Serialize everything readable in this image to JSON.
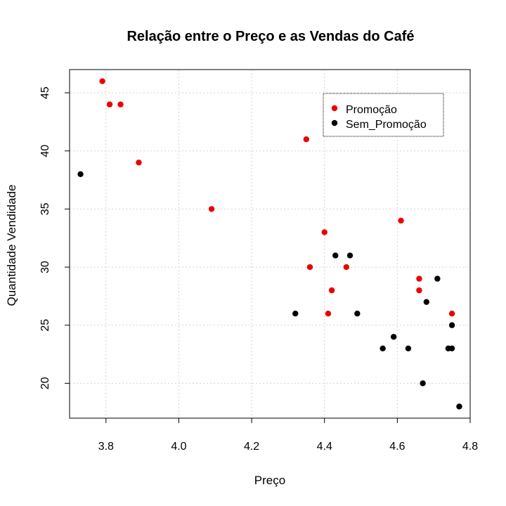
{
  "chart_data": {
    "type": "scatter",
    "title": "Relação entre o Preço e as Vendas do Café",
    "xlabel": "Preço",
    "ylabel": "Quantidade Vendidade",
    "xlim": [
      3.7,
      4.8
    ],
    "ylim": [
      17,
      47
    ],
    "xticks": [
      3.8,
      4.0,
      4.2,
      4.4,
      4.6,
      4.8
    ],
    "xtick_labels": [
      "3.8",
      "4.0",
      "4.2",
      "4.4",
      "4.6",
      "4.8"
    ],
    "yticks": [
      20,
      25,
      30,
      35,
      40,
      45
    ],
    "ytick_labels": [
      "20",
      "25",
      "30",
      "35",
      "40",
      "45"
    ],
    "grid": true,
    "legend_position": "top-right",
    "series": [
      {
        "name": "Promoção",
        "color": "#ee0000",
        "points": [
          [
            3.79,
            46
          ],
          [
            3.81,
            44
          ],
          [
            3.84,
            44
          ],
          [
            3.89,
            39
          ],
          [
            4.09,
            35
          ],
          [
            4.35,
            41
          ],
          [
            4.36,
            30
          ],
          [
            4.4,
            33
          ],
          [
            4.41,
            26
          ],
          [
            4.42,
            28
          ],
          [
            4.46,
            30
          ],
          [
            4.61,
            34
          ],
          [
            4.66,
            29
          ],
          [
            4.66,
            28
          ],
          [
            4.75,
            26
          ]
        ]
      },
      {
        "name": "Sem_Promoção",
        "color": "#000000",
        "points": [
          [
            3.73,
            38
          ],
          [
            4.32,
            26
          ],
          [
            4.43,
            31
          ],
          [
            4.47,
            31
          ],
          [
            4.49,
            26
          ],
          [
            4.56,
            23
          ],
          [
            4.59,
            24
          ],
          [
            4.63,
            23
          ],
          [
            4.67,
            20
          ],
          [
            4.68,
            27
          ],
          [
            4.71,
            29
          ],
          [
            4.74,
            23
          ],
          [
            4.75,
            23
          ],
          [
            4.75,
            25
          ],
          [
            4.77,
            18
          ]
        ]
      }
    ]
  }
}
